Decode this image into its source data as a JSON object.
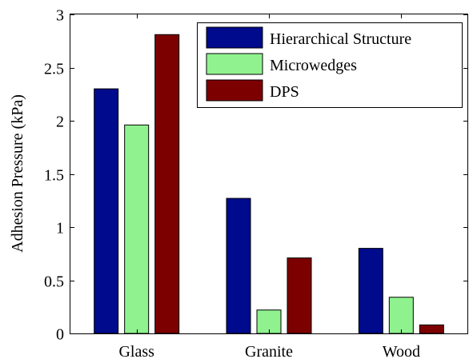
{
  "chart_data": {
    "type": "bar",
    "categories": [
      "Glass",
      "Granite",
      "Wood"
    ],
    "series": [
      {
        "name": "Hierarchical Structure",
        "color": "#000a8c",
        "values": [
          2.3,
          1.27,
          0.8
        ]
      },
      {
        "name": "Microwedges",
        "color": "#8ff28f",
        "values": [
          1.96,
          0.22,
          0.34
        ]
      },
      {
        "name": "DPS",
        "color": "#7d0000",
        "values": [
          2.81,
          0.71,
          0.08
        ]
      }
    ],
    "title": "",
    "xlabel": "",
    "ylabel": "Adhesion Pressure (kPa)",
    "ylim": [
      0,
      3
    ],
    "yticks": [
      "0",
      "0.5",
      "1",
      "1.5",
      "2",
      "2.5",
      "3"
    ],
    "grid": false,
    "legend_position": "top-right"
  }
}
